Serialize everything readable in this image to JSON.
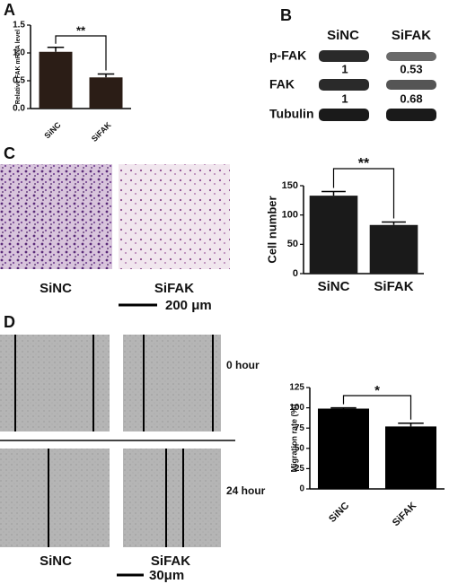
{
  "panel_labels": [
    "A",
    "B",
    "C",
    "D"
  ],
  "chart_data": [
    {
      "type": "bar",
      "ylabel": "Relative FAK mRNA level",
      "categories": [
        "SiNC",
        "SiFAK"
      ],
      "values": [
        1.02,
        0.56
      ],
      "errors": [
        0.08,
        0.06
      ],
      "color": "#2b1d16",
      "ylim": [
        0,
        1.5
      ],
      "yticks": [
        {
          "value": 0,
          "label": "0.0"
        },
        0.5,
        {
          "value": 1,
          "label": "1.0"
        },
        1.5
      ],
      "significance": "**"
    },
    {
      "type": "bar",
      "ylabel": "Cell number",
      "categories": [
        "SiNC",
        "SiFAK"
      ],
      "values": [
        133,
        83
      ],
      "errors": [
        7,
        5
      ],
      "color": "#1a1a1a",
      "ylim": [
        0,
        150
      ],
      "yticks": [
        0,
        50,
        100,
        150
      ],
      "significance": "**"
    },
    {
      "type": "bar",
      "ylabel": "Migration rate (%)",
      "categories": [
        "SiNC",
        "SiFAK"
      ],
      "values": [
        99,
        77
      ],
      "errors": [
        1,
        4
      ],
      "color": "#000000",
      "ylim": [
        0,
        125
      ],
      "yticks": [
        0,
        25,
        50,
        75,
        100,
        125
      ],
      "significance": "*"
    }
  ],
  "blot": {
    "lanes": [
      "SiNC",
      "SiFAK"
    ],
    "bands": [
      "p-FAK",
      "FAK",
      "Tubulin"
    ],
    "ratios": [
      [
        1,
        0.53
      ],
      [
        1,
        0.68
      ]
    ]
  },
  "invasion_images": {
    "labels": [
      "SiNC",
      "SiFAK"
    ],
    "scale_bar": "200 μm"
  },
  "migration_images": {
    "labels": [
      "SiNC",
      "SiFAK"
    ],
    "times": [
      "0 hour",
      "24 hour"
    ],
    "scale_bar": "30μm"
  }
}
